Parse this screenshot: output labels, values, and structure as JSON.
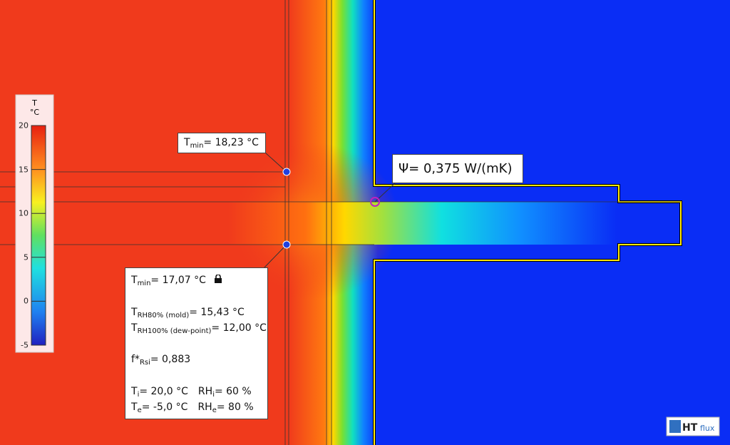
{
  "legend": {
    "title": "T",
    "unit": "°C",
    "ticks": [
      "20",
      "15",
      "10",
      "5",
      "0",
      "-5"
    ]
  },
  "psi_label": "Ψ= 0,375 W/(mK)",
  "callout_top": [
    "T",
    "min",
    "= 18,23 °C"
  ],
  "callout_bottom": {
    "tmin": [
      "T",
      "min",
      "= 17,07 °C"
    ],
    "rh80": [
      "T",
      "RH80% (mold)",
      "= 15,43 °C"
    ],
    "rh100": [
      "T",
      "RH100% (dew-point)",
      "= 12,00 °C"
    ],
    "frsi": [
      "f*",
      "Rsi",
      "= 0,883"
    ],
    "ti": [
      "T",
      "i",
      "= 20,0 °C"
    ],
    "rhi": [
      "RH",
      "i",
      "= 60 %"
    ],
    "te": [
      "T",
      "e",
      "= -5,0 °C"
    ],
    "rhe": [
      "RH",
      "e",
      "= 80 %"
    ]
  },
  "logo": {
    "ht": "HT",
    "flux": "flux"
  }
}
